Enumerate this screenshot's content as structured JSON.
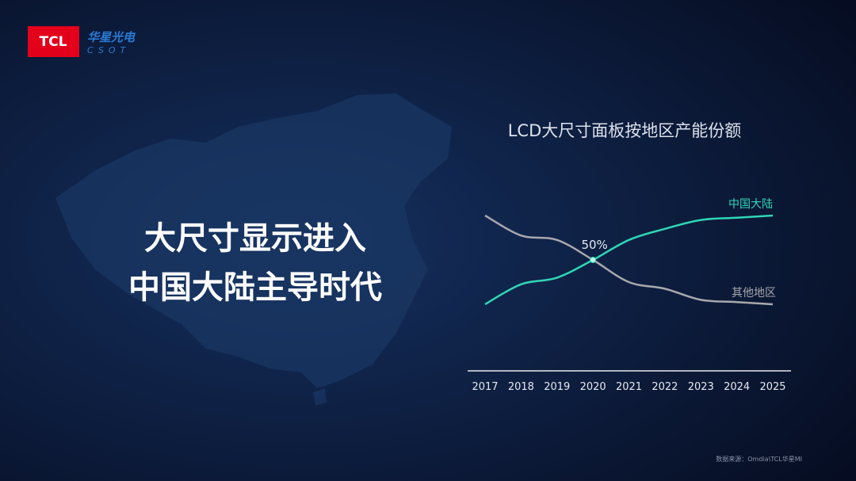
{
  "logo": {
    "brand": "TCL",
    "name": "华星光电",
    "sub": "CSOT"
  },
  "headline": [
    "大尺寸显示进入",
    "中国大陆主导时代"
  ],
  "source": "数据来源：Omdia\\TCL华星MI",
  "chart_data": {
    "type": "line",
    "title": "LCD大尺寸面板按地区产能份额",
    "categories": [
      "2017",
      "2018",
      "2019",
      "2020",
      "2021",
      "2022",
      "2023",
      "2024",
      "2025"
    ],
    "series": [
      {
        "name": "中国大陆",
        "color": "#2fd6b5",
        "values": [
          30,
          39,
          42,
          50,
          59,
          64,
          68,
          69,
          70
        ]
      },
      {
        "name": "其他地区",
        "color": "#a8a8ad",
        "values": [
          70,
          61,
          59,
          50,
          40,
          37,
          32,
          31,
          30
        ]
      }
    ],
    "annotation": "50%",
    "ylim": [
      20,
      80
    ]
  }
}
